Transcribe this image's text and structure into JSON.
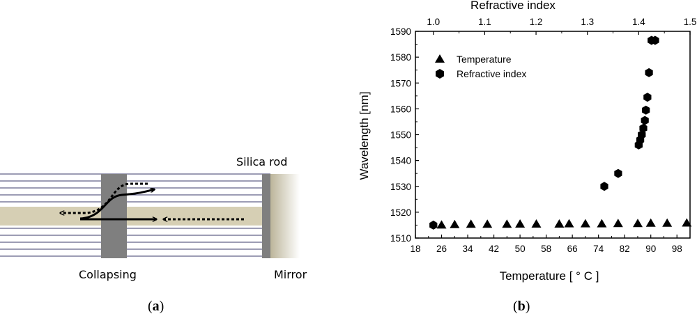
{
  "diagram": {
    "silica_rod_label": "Silica rod",
    "collapsing_label": "Collapsing",
    "mirror_label": "Mirror",
    "colors": {
      "core": "#d6cfb4",
      "collapsed": "#7f7f7f",
      "mirror": "#cfc9b0",
      "cladding_lines": "#3a3a6a"
    }
  },
  "panel_labels": {
    "a": {
      "open": "(",
      "letter": "a",
      "close": ")"
    },
    "b": {
      "open": "(",
      "letter": "b",
      "close": ")"
    }
  },
  "chart_data": {
    "type": "scatter",
    "xlabel_bottom": "Temperature [ ° C ]",
    "xlabel_top": "Refractive index",
    "ylabel": "Wavelength [nm]",
    "xlim_bottom": [
      18,
      102
    ],
    "xticks_bottom": [
      18,
      26,
      34,
      42,
      50,
      58,
      66,
      74,
      82,
      90,
      98
    ],
    "xlim_top": [
      0.965,
      1.5
    ],
    "xticks_top": [
      1.0,
      1.1,
      1.2,
      1.3,
      1.4,
      1.5
    ],
    "ylim": [
      1510,
      1590
    ],
    "yticks": [
      1510,
      1520,
      1530,
      1540,
      1550,
      1560,
      1570,
      1580,
      1590
    ],
    "legend_position": "top-left",
    "series": [
      {
        "name": "Temperature",
        "marker": "triangle",
        "axis": "bottom",
        "x": [
          26,
          30,
          35,
          40,
          46,
          50,
          55,
          62,
          65,
          70,
          75,
          80,
          86,
          90,
          95,
          101
        ],
        "y": [
          1515,
          1515.2,
          1515.3,
          1515.3,
          1515.3,
          1515.4,
          1515.4,
          1515.4,
          1515.5,
          1515.5,
          1515.5,
          1515.6,
          1515.6,
          1515.7,
          1515.7,
          1515.8
        ]
      },
      {
        "name": "Refractive index",
        "marker": "hexagon",
        "axis": "top",
        "x": [
          1.0,
          1.333,
          1.36,
          1.4,
          1.403,
          1.406,
          1.409,
          1.412,
          1.414,
          1.417,
          1.42,
          1.425,
          1.432
        ],
        "y": [
          1515,
          1530,
          1535,
          1546,
          1548,
          1550,
          1552.5,
          1555.5,
          1559.5,
          1564.5,
          1574,
          1586.5,
          1586.5
        ]
      }
    ]
  }
}
